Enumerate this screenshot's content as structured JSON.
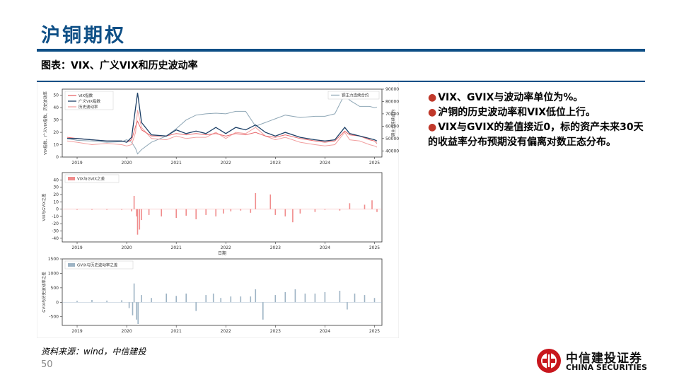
{
  "header": {
    "title": "沪铜期权",
    "chart_heading": "图表：VIX、广义VIX和历史波动率"
  },
  "bullets": [
    "VIX、GVIX与波动率单位为%。",
    "沪铜的历史波动率和VIX低位上行。",
    "VIX与GVIX的差值接近0，标的资产未来30天的收益率分布预期没有偏离对数正态分布。"
  ],
  "footer": {
    "source": "资料来源：wind，中信建投",
    "page_number": "50"
  },
  "logo": {
    "name_cn": "中信建投证券",
    "name_en": "CHINA SECURITIES"
  },
  "colors": {
    "brand_blue": "#0e4f86",
    "vix": "#e8676b",
    "gvix": "#1c3f66",
    "hv": "#f2a0a0",
    "futures": "#8fa7b6",
    "diff1": "#f08c8c",
    "diff2": "#9db3c4",
    "bullet": "#c0392b",
    "logo_red": "#c8161d"
  },
  "chart_data": [
    {
      "type": "line",
      "x_ticks": [
        "2019",
        "2020",
        "2021",
        "2022",
        "2023",
        "2024",
        "2025"
      ],
      "ylim_left": [
        0,
        55
      ],
      "yticks_left": [
        "0",
        "10",
        "20",
        "30",
        "40",
        "50"
      ],
      "ylabel_left": "VIX指数、广义VIX指数、历史波动率",
      "ylim_right": [
        35000,
        90000
      ],
      "yticks_right": [
        "40000",
        "50000",
        "60000",
        "70000",
        "80000",
        "90000"
      ],
      "ylabel_right": "铜主力连续合约",
      "legend_left": [
        "VIX指数",
        "广义VIX指数",
        "历史波动率"
      ],
      "legend_right": [
        "铜主力连续合约"
      ],
      "series": [
        {
          "name": "VIX指数",
          "axis": "left",
          "color_key": "vix",
          "x": [
            2018.8,
            2019.0,
            2019.3,
            2019.6,
            2019.9,
            2020.0,
            2020.1,
            2020.18,
            2020.22,
            2020.3,
            2020.5,
            2020.8,
            2021.0,
            2021.2,
            2021.4,
            2021.6,
            2021.8,
            2022.0,
            2022.2,
            2022.4,
            2022.6,
            2022.8,
            2023.0,
            2023.2,
            2023.5,
            2023.8,
            2024.0,
            2024.2,
            2024.4,
            2024.5,
            2024.7,
            2024.9,
            2025.0,
            2025.05
          ],
          "values": [
            16,
            15,
            14,
            13,
            13,
            12,
            14,
            25,
            29,
            22,
            17,
            17,
            19,
            18,
            19,
            18,
            19,
            17,
            19,
            18,
            20,
            17,
            16,
            18,
            15,
            13,
            12,
            13,
            21,
            18,
            17,
            14,
            13,
            11
          ]
        },
        {
          "name": "广义VIX指数",
          "axis": "left",
          "color_key": "gvix",
          "x": [
            2018.8,
            2019.0,
            2019.3,
            2019.6,
            2019.9,
            2020.0,
            2020.1,
            2020.18,
            2020.22,
            2020.3,
            2020.5,
            2020.8,
            2021.0,
            2021.2,
            2021.4,
            2021.6,
            2021.8,
            2022.0,
            2022.2,
            2022.4,
            2022.6,
            2022.8,
            2023.0,
            2023.2,
            2023.5,
            2023.8,
            2024.0,
            2024.2,
            2024.4,
            2024.5,
            2024.7,
            2024.9,
            2025.0,
            2025.05
          ],
          "values": [
            15,
            15,
            14,
            13,
            13,
            12,
            16,
            40,
            52,
            28,
            18,
            17,
            22,
            19,
            21,
            19,
            24,
            19,
            24,
            22,
            26,
            20,
            17,
            20,
            16,
            14,
            13,
            14,
            24,
            19,
            17,
            15,
            14,
            13
          ]
        },
        {
          "name": "历史波动率",
          "axis": "left",
          "color_key": "hv",
          "x": [
            2018.8,
            2019.0,
            2019.3,
            2019.6,
            2019.9,
            2020.0,
            2020.1,
            2020.18,
            2020.22,
            2020.3,
            2020.5,
            2020.8,
            2021.0,
            2021.2,
            2021.4,
            2021.6,
            2021.8,
            2022.0,
            2022.2,
            2022.4,
            2022.6,
            2022.8,
            2023.0,
            2023.2,
            2023.5,
            2023.8,
            2024.0,
            2024.2,
            2024.4,
            2024.5,
            2024.7,
            2024.9,
            2025.0,
            2025.05
          ],
          "values": [
            13,
            12,
            10,
            11,
            10,
            9,
            10,
            20,
            38,
            24,
            15,
            14,
            17,
            15,
            16,
            16,
            20,
            15,
            20,
            19,
            24,
            17,
            14,
            16,
            12,
            10,
            9,
            10,
            20,
            14,
            13,
            10,
            9,
            8
          ]
        },
        {
          "name": "铜主力连续合约",
          "axis": "right",
          "color_key": "futures",
          "x": [
            2018.8,
            2019.0,
            2019.3,
            2019.6,
            2019.9,
            2020.0,
            2020.1,
            2020.18,
            2020.22,
            2020.3,
            2020.5,
            2020.8,
            2021.0,
            2021.2,
            2021.4,
            2021.6,
            2021.8,
            2022.0,
            2022.2,
            2022.4,
            2022.6,
            2022.8,
            2023.0,
            2023.2,
            2023.5,
            2023.8,
            2024.0,
            2024.2,
            2024.4,
            2024.5,
            2024.7,
            2024.9,
            2025.0,
            2025.05
          ],
          "values": [
            50000,
            48500,
            48000,
            47000,
            47500,
            49000,
            47000,
            42000,
            37500,
            41000,
            47000,
            52000,
            58000,
            65000,
            69000,
            70000,
            70500,
            70000,
            72000,
            72000,
            60000,
            63000,
            66000,
            69000,
            67000,
            68000,
            68000,
            70000,
            86000,
            81000,
            76000,
            76000,
            75000,
            75500
          ]
        }
      ]
    },
    {
      "type": "bar",
      "x_ticks": [
        "2019",
        "2020",
        "2021",
        "2022",
        "2023",
        "2024",
        "2025"
      ],
      "xlabel": "日期",
      "ylabel": "VIX与GVIX之差",
      "ylim": [
        -45,
        50
      ],
      "yticks": [
        "-40",
        "-30",
        "-20",
        "-10",
        "0",
        "10",
        "20",
        "30",
        "40"
      ],
      "legend": [
        "VIX与GVIX之差"
      ],
      "series": [
        {
          "name": "VIX与GVIX之差",
          "color_key": "diff1",
          "x": [
            2019.0,
            2019.3,
            2019.6,
            2019.9,
            2020.1,
            2020.15,
            2020.2,
            2020.22,
            2020.26,
            2020.3,
            2020.45,
            2020.7,
            2021.0,
            2021.2,
            2021.4,
            2021.6,
            2021.8,
            2021.95,
            2022.1,
            2022.3,
            2022.5,
            2022.6,
            2022.9,
            2023.0,
            2023.2,
            2023.35,
            2023.5,
            2023.8,
            2024.0,
            2024.3,
            2024.5,
            2024.8,
            2024.95,
            2025.05
          ],
          "values": [
            -1,
            -1,
            -1,
            -1,
            -3,
            18,
            -10,
            -35,
            -28,
            -15,
            -8,
            -10,
            -12,
            -9,
            -14,
            -8,
            -10,
            -6,
            -3,
            -2,
            -5,
            22,
            20,
            -8,
            -10,
            -18,
            -6,
            -4,
            -1,
            -2,
            8,
            6,
            12,
            -4
          ]
        }
      ]
    },
    {
      "type": "bar",
      "x_ticks": [
        "2019",
        "2020",
        "2021",
        "2022",
        "2023",
        "2024",
        "2025"
      ],
      "ylabel": "GVIX与历史波动率之差",
      "ylim": [
        -800,
        1500
      ],
      "yticks": [
        "-500",
        "0",
        "500",
        "1000",
        "1500"
      ],
      "legend": [
        "GVIX与历史波动率之差"
      ],
      "series": [
        {
          "name": "GVIX与历史波动率之差",
          "color_key": "diff2",
          "x": [
            2019.0,
            2019.3,
            2019.6,
            2019.9,
            2020.05,
            2020.12,
            2020.15,
            2020.2,
            2020.23,
            2020.3,
            2020.5,
            2020.8,
            2021.0,
            2021.2,
            2021.4,
            2021.6,
            2021.75,
            2021.9,
            2022.1,
            2022.3,
            2022.5,
            2022.6,
            2022.75,
            2023.0,
            2023.2,
            2023.4,
            2023.6,
            2023.8,
            2024.0,
            2024.3,
            2024.45,
            2024.6,
            2024.8,
            2025.0
          ],
          "values": [
            50,
            80,
            60,
            70,
            -200,
            -450,
            650,
            -600,
            -750,
            250,
            150,
            300,
            220,
            300,
            -300,
            250,
            300,
            150,
            200,
            200,
            200,
            450,
            -600,
            250,
            350,
            450,
            300,
            300,
            350,
            400,
            -250,
            300,
            250,
            150
          ]
        }
      ]
    }
  ]
}
